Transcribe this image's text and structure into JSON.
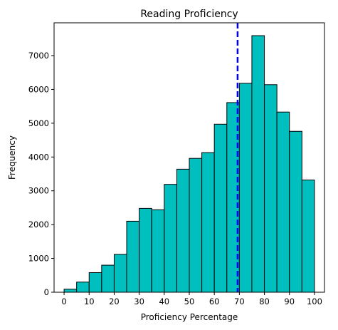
{
  "chart_data": {
    "type": "bar",
    "title": "Reading Proficiency",
    "xlabel": "Proficiency Percentage",
    "ylabel": "Frequency",
    "bin_edges": [
      0,
      5,
      10,
      15,
      20,
      25,
      30,
      35,
      40,
      45,
      50,
      55,
      60,
      65,
      70,
      75,
      80,
      85,
      90,
      95,
      100
    ],
    "values": [
      90,
      300,
      580,
      800,
      1120,
      2100,
      2480,
      2440,
      3190,
      3640,
      3960,
      4130,
      4970,
      5610,
      6180,
      7590,
      6140,
      5330,
      4760,
      3320
    ],
    "xlim": [
      -4,
      104
    ],
    "ylim": [
      0,
      7970
    ],
    "xticks": [
      0,
      10,
      20,
      30,
      40,
      50,
      60,
      70,
      80,
      90,
      100
    ],
    "yticks": [
      0,
      1000,
      2000,
      3000,
      4000,
      5000,
      6000,
      7000
    ],
    "reference_line": {
      "x": 69.3,
      "style": "dashed"
    },
    "grid": false,
    "colors": {
      "bar_fill": "#00bfbf",
      "bar_edge": "#000000",
      "reference_line": "#0000ff"
    }
  }
}
